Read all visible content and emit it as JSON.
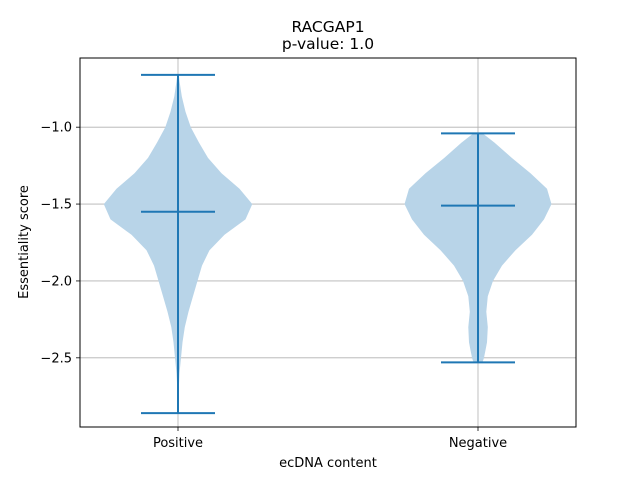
{
  "chart_data": {
    "type": "violin",
    "title": "RACGAP1",
    "subtitle": "p-value: 1.0",
    "xlabel": "ecDNA content",
    "ylabel": "Essentiality score",
    "categories": [
      "Positive",
      "Negative"
    ],
    "ylim": [
      -2.95,
      -0.55
    ],
    "yticks": [
      -1.0,
      -1.5,
      -2.0,
      -2.5
    ],
    "ytick_labels": [
      "−1.0",
      "−1.5",
      "−2.0",
      "−2.5"
    ],
    "grid": true,
    "colors": {
      "body": "#b8d4e8",
      "lines": "#1f77b4",
      "grid": "#b0b0b0"
    },
    "violins": [
      {
        "category": "Positive",
        "min": -2.86,
        "max": -0.66,
        "median": -1.55,
        "density": [
          [
            -2.86,
            0.002
          ],
          [
            -2.8,
            0.005
          ],
          [
            -2.7,
            0.01
          ],
          [
            -2.6,
            0.02
          ],
          [
            -2.5,
            0.04
          ],
          [
            -2.4,
            0.06
          ],
          [
            -2.3,
            0.09
          ],
          [
            -2.2,
            0.14
          ],
          [
            -2.1,
            0.2
          ],
          [
            -2.0,
            0.26
          ],
          [
            -1.9,
            0.32
          ],
          [
            -1.8,
            0.42
          ],
          [
            -1.7,
            0.62
          ],
          [
            -1.6,
            0.9
          ],
          [
            -1.5,
            0.99
          ],
          [
            -1.4,
            0.82
          ],
          [
            -1.3,
            0.58
          ],
          [
            -1.2,
            0.4
          ],
          [
            -1.1,
            0.28
          ],
          [
            -1.0,
            0.17
          ],
          [
            -0.9,
            0.1
          ],
          [
            -0.8,
            0.05
          ],
          [
            -0.7,
            0.02
          ],
          [
            -0.66,
            0.01
          ]
        ]
      },
      {
        "category": "Negative",
        "min": -2.53,
        "max": -1.04,
        "median": -1.51,
        "density": [
          [
            -2.53,
            0.06
          ],
          [
            -2.5,
            0.08
          ],
          [
            -2.45,
            0.1
          ],
          [
            -2.4,
            0.12
          ],
          [
            -2.3,
            0.13
          ],
          [
            -2.2,
            0.11
          ],
          [
            -2.1,
            0.13
          ],
          [
            -2.0,
            0.2
          ],
          [
            -1.9,
            0.32
          ],
          [
            -1.8,
            0.5
          ],
          [
            -1.7,
            0.72
          ],
          [
            -1.6,
            0.88
          ],
          [
            -1.5,
            0.98
          ],
          [
            -1.4,
            0.92
          ],
          [
            -1.3,
            0.7
          ],
          [
            -1.2,
            0.45
          ],
          [
            -1.1,
            0.22
          ],
          [
            -1.04,
            0.06
          ]
        ]
      }
    ]
  }
}
